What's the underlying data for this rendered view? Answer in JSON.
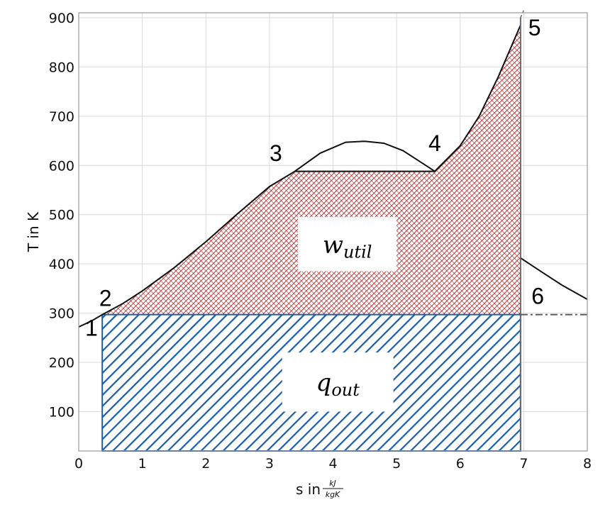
{
  "chart_data": {
    "type": "area",
    "title": "",
    "xlabel": "s in",
    "xlabel_unit_num": "kJ",
    "xlabel_unit_den": "kgK",
    "ylabel": "T in K",
    "xlim": [
      0,
      8
    ],
    "ylim": [
      20,
      910
    ],
    "x_ticks": [
      0,
      1,
      2,
      3,
      4,
      5,
      6,
      7,
      8
    ],
    "y_ticks": [
      100,
      200,
      300,
      400,
      500,
      600,
      700,
      800,
      900
    ],
    "grid": true,
    "cycle_curve": {
      "x": [
        0.0,
        0.2,
        0.37,
        0.7,
        1.0,
        1.5,
        2.0,
        2.5,
        3.0,
        3.4,
        5.6,
        6.0,
        6.3,
        6.6,
        6.8,
        6.95
      ],
      "y": [
        272,
        284,
        297,
        320,
        345,
        392,
        445,
        502,
        557,
        588,
        588,
        640,
        700,
        780,
        840,
        885
      ]
    },
    "saturation_dome": {
      "x": [
        3.4,
        3.8,
        4.2,
        4.5,
        4.8,
        5.1,
        5.4,
        5.6
      ],
      "y": [
        588,
        625,
        647,
        649,
        645,
        630,
        605,
        588
      ]
    },
    "expansion_line": {
      "x": [
        6.95,
        6.95
      ],
      "y": [
        20,
        900
      ]
    },
    "expansion_extension": {
      "x": [
        6.95,
        7.0
      ],
      "y": [
        900,
        915
      ]
    },
    "outlet_curve": {
      "x": [
        6.95,
        7.3,
        7.6,
        8.0
      ],
      "y": [
        412,
        382,
        357,
        328
      ]
    },
    "ambient_line": {
      "x": [
        6.95,
        8.0
      ],
      "y": [
        297,
        297
      ]
    },
    "regions": [
      {
        "label_main": "w",
        "label_sub": "util",
        "color": "#b22222",
        "pattern": "fine-crosshatch",
        "label_box": {
          "x": [
            3.45,
            5.0
          ],
          "y": [
            385,
            495
          ]
        }
      },
      {
        "label_main": "q",
        "label_sub": "out",
        "color": "#1f5fa8",
        "pattern": "diagonal-stripes",
        "bounds": {
          "x": [
            0.37,
            6.95
          ],
          "y": [
            20,
            297
          ]
        },
        "label_box": {
          "x": [
            3.2,
            4.95
          ],
          "y": [
            100,
            220
          ]
        }
      }
    ],
    "point_labels": [
      {
        "text": "1",
        "x": 0.2,
        "y": 270
      },
      {
        "text": "2",
        "x": 0.42,
        "y": 330
      },
      {
        "text": "3",
        "x": 3.1,
        "y": 625
      },
      {
        "text": "4",
        "x": 5.6,
        "y": 645
      },
      {
        "text": "5",
        "x": 7.17,
        "y": 880
      },
      {
        "text": "6",
        "x": 7.22,
        "y": 335
      }
    ],
    "colors": {
      "curve": "#111111",
      "grid": "#d9d9d9",
      "frame": "#9a9a9a",
      "work": "#b22222",
      "heat": "#1f5fa8"
    }
  }
}
